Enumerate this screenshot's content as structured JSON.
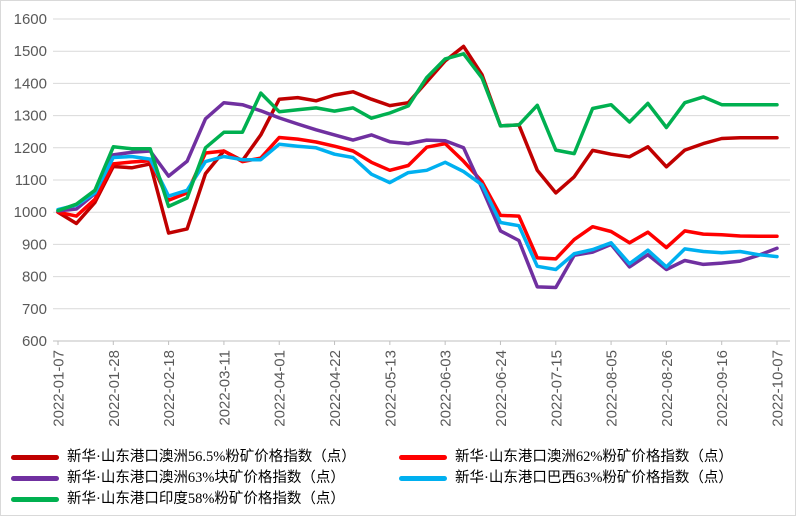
{
  "chart_data": {
    "type": "line",
    "title": "",
    "xlabel": "",
    "ylabel": "",
    "n_points": 40,
    "x_tick_every": 3,
    "x_tick_labels": [
      "2022-01-07",
      "2022-01-28",
      "2022-02-18",
      "2022-03-11",
      "2022-04-01",
      "2022-04-22",
      "2022-05-13",
      "2022-06-03",
      "2022-06-24",
      "2022-07-15",
      "2022-08-05",
      "2022-08-26",
      "2022-09-16",
      "2022-10-07"
    ],
    "y_tick_labels": [
      "600",
      "700",
      "800",
      "900",
      "1000",
      "1100",
      "1200",
      "1300",
      "1400",
      "1500",
      "1600"
    ],
    "ylim": [
      600,
      1600
    ],
    "grid": true,
    "legend_position": "bottom",
    "legend_column_order": [
      0,
      2,
      4,
      1,
      3
    ],
    "series": [
      {
        "name": "新华·山东港口澳洲56.5%粉矿价格指数（点）",
        "color": "#C00000",
        "values": [
          1000,
          965,
          1030,
          1142,
          1138,
          1150,
          935,
          948,
          1120,
          1190,
          1160,
          1240,
          1351,
          1356,
          1346,
          1364,
          1374,
          1351,
          1331,
          1340,
          1405,
          1470,
          1515,
          1427,
          1268,
          1271,
          1130,
          1060,
          1110,
          1192,
          1180,
          1172,
          1203,
          1141,
          1193,
          1213,
          1229,
          1231,
          1231,
          1231
        ]
      },
      {
        "name": "新华·山东港口澳洲62%粉矿价格指数（点）",
        "color": "#FF0000",
        "values": [
          1000,
          988,
          1040,
          1150,
          1156,
          1160,
          1037,
          1060,
          1184,
          1190,
          1157,
          1168,
          1232,
          1227,
          1218,
          1205,
          1190,
          1155,
          1130,
          1145,
          1202,
          1213,
          1158,
          1095,
          990,
          988,
          858,
          855,
          915,
          955,
          940,
          905,
          938,
          890,
          942,
          932,
          930,
          926,
          925,
          925
        ]
      },
      {
        "name": "新华·山东港口澳洲63%块矿价格指数（点）",
        "color": "#7030A0",
        "values": [
          1004,
          1010,
          1058,
          1178,
          1186,
          1190,
          1112,
          1158,
          1290,
          1340,
          1334,
          1315,
          1293,
          1274,
          1256,
          1240,
          1224,
          1240,
          1219,
          1213,
          1224,
          1222,
          1200,
          1075,
          942,
          912,
          768,
          766,
          866,
          876,
          900,
          830,
          868,
          822,
          850,
          838,
          842,
          848,
          866,
          888
        ]
      },
      {
        "name": "新华·山东港口巴西63%粉矿价格指数（点）",
        "color": "#00B0F0",
        "values": [
          1008,
          1022,
          1060,
          1170,
          1173,
          1165,
          1050,
          1068,
          1157,
          1173,
          1163,
          1163,
          1211,
          1205,
          1200,
          1180,
          1170,
          1118,
          1092,
          1123,
          1130,
          1155,
          1126,
          1085,
          968,
          958,
          832,
          822,
          871,
          884,
          905,
          840,
          882,
          830,
          886,
          878,
          874,
          878,
          868,
          862
        ]
      },
      {
        "name": "新华·山东港口印度58%粉矿价格指数（点）",
        "color": "#00B050",
        "values": [
          1005,
          1025,
          1068,
          1203,
          1197,
          1197,
          1018,
          1044,
          1200,
          1248,
          1248,
          1370,
          1312,
          1318,
          1324,
          1314,
          1324,
          1292,
          1308,
          1330,
          1418,
          1476,
          1492,
          1417,
          1268,
          1271,
          1332,
          1193,
          1182,
          1322,
          1334,
          1280,
          1338,
          1263,
          1340,
          1358,
          1334,
          1334,
          1334,
          1334
        ]
      }
    ]
  },
  "styles": {
    "grid_color": "#D9D9D9",
    "axis_color": "#BFBFBF",
    "tick_label_color": "#595959",
    "legend_text_color": "#000000",
    "background": "#FFFFFF",
    "line_width": 3.5
  }
}
